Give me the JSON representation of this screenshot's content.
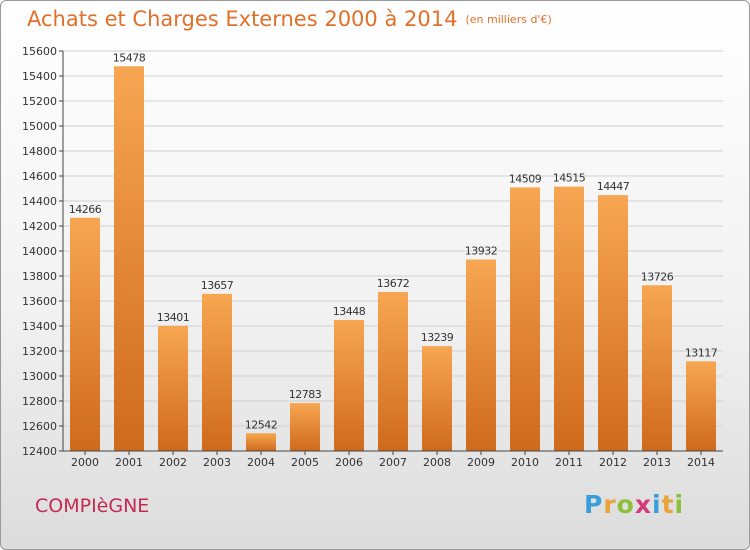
{
  "title": "Achats et Charges Externes 2000 à 2014",
  "unit_note": "(en milliers d'€)",
  "city": "COMPIèGNE",
  "brand": {
    "letters": [
      "P",
      "r",
      "o",
      "x",
      "i",
      "t",
      "i"
    ],
    "colors": [
      "#3a9fd8",
      "#e8a33d",
      "#8dbf3c",
      "#d23b7a",
      "#3a9fd8",
      "#e8a33d",
      "#8dbf3c"
    ]
  },
  "colors": {
    "bar_light": "#f7a652",
    "bar_dark": "#cf6a1c",
    "title": "#e0702a",
    "city": "#c42a52",
    "axis": "#444444"
  },
  "chart_data": {
    "type": "bar",
    "title": "Achats et Charges Externes 2000 à 2014",
    "subtitle": "(en milliers d'€)",
    "xlabel": "",
    "ylabel": "",
    "categories": [
      "2000",
      "2001",
      "2002",
      "2003",
      "2004",
      "2005",
      "2006",
      "2007",
      "2008",
      "2009",
      "2010",
      "2011",
      "2012",
      "2013",
      "2014"
    ],
    "values": [
      14266,
      15478,
      13401,
      13657,
      12542,
      12783,
      13448,
      13672,
      13239,
      13932,
      14509,
      14515,
      14447,
      13726,
      13117
    ],
    "ylim": [
      12400,
      15600
    ],
    "yticks": [
      12400,
      12600,
      12800,
      13000,
      13200,
      13400,
      13600,
      13800,
      14000,
      14200,
      14400,
      14600,
      14800,
      15000,
      15200,
      15400,
      15600
    ],
    "grid": true,
    "legend": "none"
  }
}
